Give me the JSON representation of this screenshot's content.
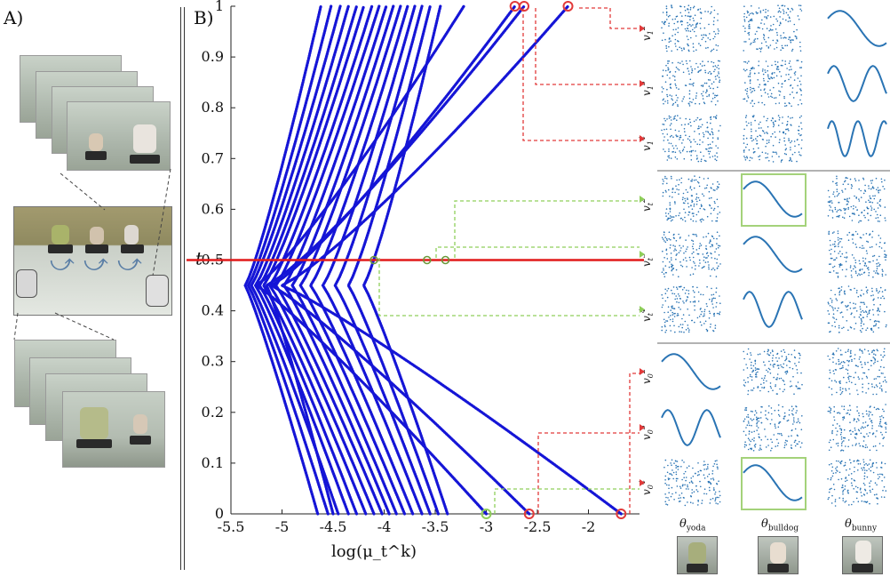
{
  "panel_a": {
    "label": "A)"
  },
  "panel_b": {
    "label": "B)"
  },
  "chart_data": {
    "type": "line",
    "xlabel": "log(μ_t^k)",
    "ylabel": "t",
    "xlim": [
      -5.5,
      -1.5
    ],
    "ylim": [
      0,
      1
    ],
    "x_ticks": [
      "-5.5",
      "-5",
      "-4.5",
      "-4",
      "-3.5",
      "-3",
      "-2.5",
      "-2"
    ],
    "y_ticks": [
      "0",
      "0.1",
      "0.2",
      "0.3",
      "0.4",
      "0.5",
      "0.6",
      "0.7",
      "0.8",
      "0.9",
      "1"
    ],
    "grid": false,
    "line_color": "#1515d6",
    "highlight_t": 0.5,
    "highlight_color": "#e11a1a",
    "series": [
      {
        "start": -4.65,
        "end": -4.62,
        "mid": -5.36
      },
      {
        "start": -4.55,
        "end": -4.52,
        "mid": -5.33
      },
      {
        "start": -4.45,
        "end": -4.43,
        "mid": -5.3
      },
      {
        "start": -4.35,
        "end": -4.35,
        "mid": -5.26
      },
      {
        "start": -4.27,
        "end": -4.27,
        "mid": -5.22
      },
      {
        "start": -4.18,
        "end": -4.2,
        "mid": -5.18
      },
      {
        "start": -4.1,
        "end": -4.12,
        "mid": -5.12
      },
      {
        "start": -4.02,
        "end": -4.05,
        "mid": -5.06
      },
      {
        "start": -3.95,
        "end": -3.98,
        "mid": -4.98
      },
      {
        "start": -3.88,
        "end": -3.91,
        "mid": -4.9
      },
      {
        "start": -3.8,
        "end": -3.84,
        "mid": -4.82
      },
      {
        "start": -3.72,
        "end": -3.77,
        "mid": -4.72
      },
      {
        "start": -3.63,
        "end": -3.7,
        "mid": -4.6
      },
      {
        "start": -3.55,
        "end": -3.63,
        "mid": -4.48
      },
      {
        "start": -3.47,
        "end": -3.55,
        "mid": -4.35
      },
      {
        "start": -3.38,
        "end": -3.45,
        "mid": -4.2
      },
      {
        "start": -3.0,
        "end": -3.22,
        "mid": -5.25
      },
      {
        "start": -2.58,
        "end": -2.72,
        "mid": -5.1
      },
      {
        "start": -1.68,
        "end": -2.2,
        "mid": -5.0
      },
      {
        "start": -4.5,
        "end": -2.63,
        "mid": -5.15
      }
    ],
    "row_labels": [
      "v_1^2",
      "v_1^3",
      "v_1^4",
      "v_t^2",
      "v_t^3",
      "v_t^4",
      "v_0^2",
      "v_0^3",
      "v_0^4"
    ],
    "column_labels": [
      {
        "base": "θ",
        "sub": "yoda"
      },
      {
        "base": "θ",
        "sub": "bulldog"
      },
      {
        "base": "θ",
        "sub": "bunny"
      }
    ],
    "scatter_color": "#2a74b4",
    "box_color": "#a4d27a",
    "red_marker_color": "#e23a3a",
    "green_marker_color": "#8fcf5a"
  }
}
